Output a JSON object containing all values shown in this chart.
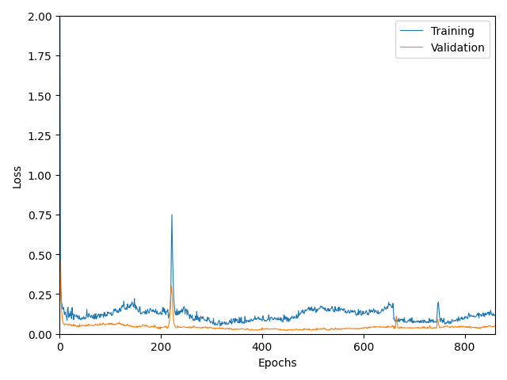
{
  "title": "",
  "xlabel": "Epochs",
  "ylabel": "Loss",
  "xlim": [
    0,
    860
  ],
  "ylim": [
    0.0,
    2.0
  ],
  "xticks": [
    0,
    200,
    400,
    600,
    800
  ],
  "yticks": [
    0.0,
    0.25,
    0.5,
    0.75,
    1.0,
    1.25,
    1.5,
    1.75,
    2.0
  ],
  "training_color": "#1f77b4",
  "validation_color": "#ff7f0e",
  "legend_labels": [
    "Training",
    "Validation"
  ],
  "figsize": [
    6.4,
    4.81
  ],
  "dpi": 100,
  "linewidth": 0.8,
  "random_seed": 42,
  "n_epochs": 860
}
